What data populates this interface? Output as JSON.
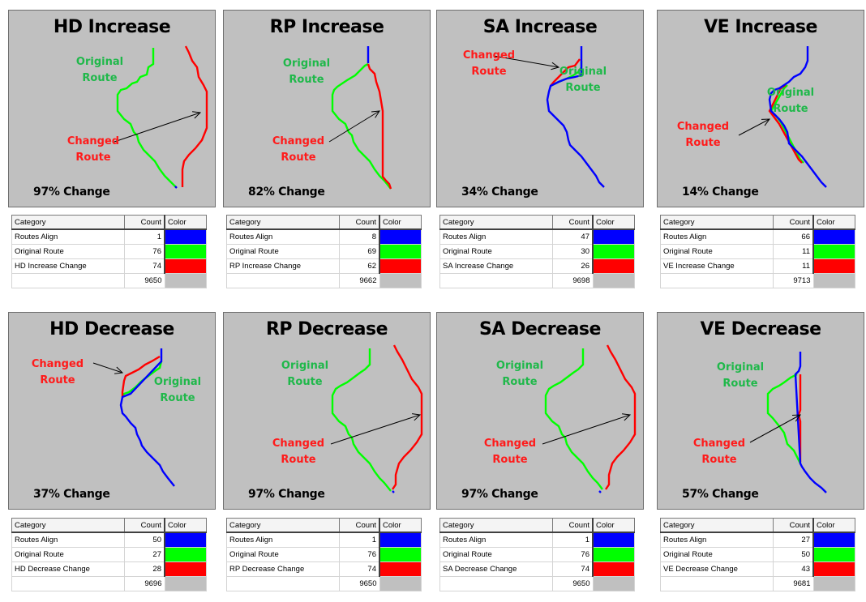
{
  "colors": {
    "routes_align": "#0000ff",
    "original_route": "#00ff00",
    "change": "#ff0000",
    "background": "#c0c0c0",
    "label_original": "#1fb84a",
    "label_changed": "#ff1a1a"
  },
  "labels": {
    "original": [
      "Original",
      "Route"
    ],
    "changed": [
      "Changed",
      "Route"
    ]
  },
  "table_headers": {
    "category": "Category",
    "count": "Count",
    "color": "Color"
  },
  "panels": [
    {
      "title": "HD Increase",
      "change_pct": "97% Change",
      "rows": [
        {
          "category": "Routes Align",
          "count": "1"
        },
        {
          "category": "Original Route",
          "count": "76"
        },
        {
          "category": "HD Increase Change",
          "count": "74"
        },
        {
          "category": "",
          "count": "9650"
        }
      ]
    },
    {
      "title": "RP Increase",
      "change_pct": "82% Change",
      "rows": [
        {
          "category": "Routes Align",
          "count": "8"
        },
        {
          "category": "Original Route",
          "count": "69"
        },
        {
          "category": "RP Increase Change",
          "count": "62"
        },
        {
          "category": "",
          "count": "9662"
        }
      ]
    },
    {
      "title": "SA Increase",
      "change_pct": "34% Change",
      "rows": [
        {
          "category": "Routes Align",
          "count": "47"
        },
        {
          "category": "Original Route",
          "count": "30"
        },
        {
          "category": "SA Increase Change",
          "count": "26"
        },
        {
          "category": "",
          "count": "9698"
        }
      ]
    },
    {
      "title": "VE Increase",
      "change_pct": "14% Change",
      "rows": [
        {
          "category": "Routes Align",
          "count": "66"
        },
        {
          "category": "Original Route",
          "count": "11"
        },
        {
          "category": "VE Increase Change",
          "count": "11"
        },
        {
          "category": "",
          "count": "9713"
        }
      ]
    },
    {
      "title": "HD Decrease",
      "change_pct": "37% Change",
      "rows": [
        {
          "category": "Routes Align",
          "count": "50"
        },
        {
          "category": "Original Route",
          "count": "27"
        },
        {
          "category": "HD Decrease Change",
          "count": "28"
        },
        {
          "category": "",
          "count": "9696"
        }
      ]
    },
    {
      "title": "RP Decrease",
      "change_pct": "97% Change",
      "rows": [
        {
          "category": "Routes Align",
          "count": "1"
        },
        {
          "category": "Original Route",
          "count": "76"
        },
        {
          "category": "RP Decrease Change",
          "count": "74"
        },
        {
          "category": "",
          "count": "9650"
        }
      ]
    },
    {
      "title": "SA Decrease",
      "change_pct": "97% Change",
      "rows": [
        {
          "category": "Routes Align",
          "count": "1"
        },
        {
          "category": "Original Route",
          "count": "76"
        },
        {
          "category": "SA Decrease Change",
          "count": "74"
        },
        {
          "category": "",
          "count": "9650"
        }
      ]
    },
    {
      "title": "VE Decrease",
      "change_pct": "57% Change",
      "rows": [
        {
          "category": "Routes Align",
          "count": "27"
        },
        {
          "category": "Original Route",
          "count": "50"
        },
        {
          "category": "VE Decrease Change",
          "count": "43"
        },
        {
          "category": "",
          "count": "9681"
        }
      ]
    }
  ]
}
